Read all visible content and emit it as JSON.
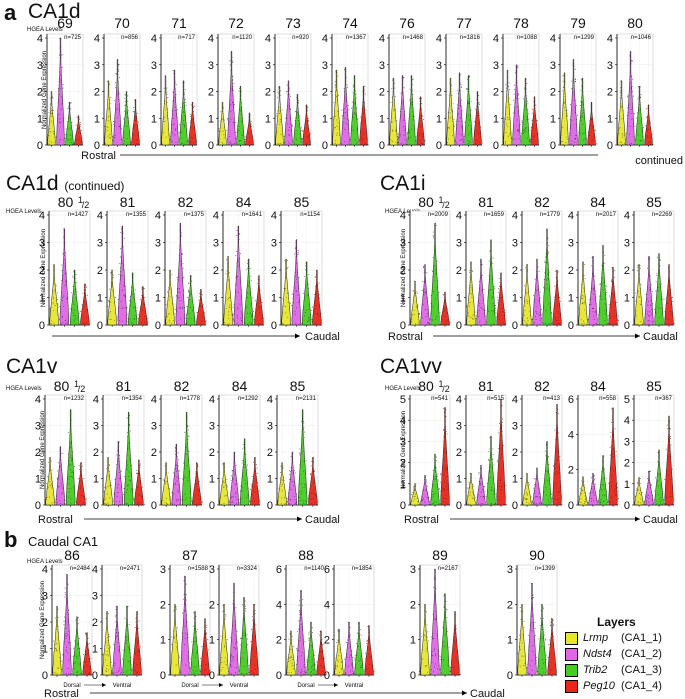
{
  "panel_labels": {
    "a": "a",
    "b": "b"
  },
  "titles": {
    "ca1d": "CA1d",
    "ca1d_cont": "CA1d",
    "ca1d_cont_sub": "(continued)",
    "ca1i": "CA1i",
    "ca1v": "CA1v",
    "ca1vv": "CA1vv",
    "caudal": "Caudal CA1"
  },
  "hgea_label": "HGEA Levels",
  "ylabel": "Normalized Gene Expression",
  "axis_labels": {
    "rostral": "Rostral",
    "caudal": "Caudal",
    "continued": "continued",
    "dorsal": "Dorsal",
    "ventral": "Ventral"
  },
  "legend": {
    "title": "Layers",
    "items": [
      {
        "gene": "Lrmp",
        "layer": "(CA1_1)",
        "color": "#e6e62e"
      },
      {
        "gene": "Ndst4",
        "layer": "(CA1_2)",
        "color": "#e066e6"
      },
      {
        "gene": "Trib2",
        "layer": "(CA1_3)",
        "color": "#44cc22"
      },
      {
        "gene": "Peg10",
        "layer": "(CA1_4)",
        "color": "#e8261a"
      }
    ]
  },
  "colors": {
    "Lrmp": "#e6e62e",
    "Ndst4": "#e066e6",
    "Trib2": "#44cc22",
    "Peg10": "#e8261a",
    "dots_dark": "#333333"
  },
  "chart_data": [
    {
      "type": "violin",
      "section": "CA1d",
      "ylim": [
        0,
        4
      ],
      "yticks": [
        0,
        1,
        2,
        3,
        4
      ],
      "categories": [
        "Lrmp",
        "Ndst4",
        "Trib2",
        "Peg10"
      ],
      "plots": [
        {
          "level": "69",
          "n": "n=725",
          "heights": [
            2.0,
            4.0,
            1.6,
            1.1
          ]
        },
        {
          "level": "70",
          "n": "n=856",
          "heights": [
            2.4,
            3.2,
            2.0,
            1.7
          ]
        },
        {
          "level": "71",
          "n": "n=717",
          "heights": [
            2.6,
            2.8,
            2.4,
            1.6
          ]
        },
        {
          "level": "72",
          "n": "n=1120",
          "heights": [
            1.6,
            3.5,
            2.2,
            1.2
          ]
        },
        {
          "level": "73",
          "n": "n=920",
          "heights": [
            2.2,
            2.4,
            1.9,
            1.5
          ]
        },
        {
          "level": "74",
          "n": "n=1367",
          "heights": [
            2.8,
            2.9,
            2.6,
            2.2
          ]
        },
        {
          "level": "76",
          "n": "n=1468",
          "heights": [
            2.5,
            2.6,
            2.6,
            1.8
          ]
        },
        {
          "level": "77",
          "n": "n=1816",
          "heights": [
            2.5,
            2.7,
            2.6,
            2.0
          ]
        },
        {
          "level": "78",
          "n": "n=1088",
          "heights": [
            2.8,
            3.0,
            2.5,
            1.8
          ]
        },
        {
          "level": "79",
          "n": "n=1299",
          "heights": [
            2.7,
            3.2,
            2.5,
            1.6
          ]
        },
        {
          "level": "80",
          "n": "n=1046",
          "heights": [
            2.4,
            3.5,
            2.2,
            1.5
          ]
        }
      ]
    },
    {
      "type": "violin",
      "section": "CA1d (continued)",
      "ylim": [
        0,
        4
      ],
      "yticks": [
        0,
        1,
        2,
        3,
        4
      ],
      "categories": [
        "Lrmp",
        "Ndst4",
        "Trib2",
        "Peg10"
      ],
      "plots": [
        {
          "level": "80",
          "n": "n=1427",
          "heights": [
            2.2,
            3.5,
            2.0,
            1.5
          ]
        },
        {
          "level": "81",
          "n": "n=1355",
          "heights": [
            2.0,
            3.6,
            1.9,
            1.4
          ]
        },
        {
          "level": "82",
          "n": "n=1375",
          "heights": [
            2.0,
            3.7,
            1.8,
            1.3
          ]
        },
        {
          "level": "84",
          "n": "n=1641",
          "heights": [
            2.5,
            3.6,
            2.4,
            1.8
          ]
        },
        {
          "level": "85",
          "n": "n=1154",
          "heights": [
            2.4,
            3.1,
            2.3,
            2.0
          ]
        }
      ]
    },
    {
      "type": "violin",
      "section": "CA1i",
      "ylim": [
        0,
        4
      ],
      "yticks": [
        0,
        1,
        2,
        3,
        4
      ],
      "categories": [
        "Lrmp",
        "Ndst4",
        "Trib2",
        "Peg10"
      ],
      "plots": [
        {
          "level": "80",
          "n": "n=2009",
          "heights": [
            1.6,
            2.2,
            3.7,
            1.2
          ]
        },
        {
          "level": "81",
          "n": "n=1659",
          "heights": [
            2.3,
            2.4,
            3.1,
            1.9
          ]
        },
        {
          "level": "82",
          "n": "n=1779",
          "heights": [
            2.2,
            2.4,
            3.5,
            2.0
          ]
        },
        {
          "level": "84",
          "n": "n=2017",
          "heights": [
            2.3,
            2.5,
            2.9,
            2.1
          ]
        },
        {
          "level": "85",
          "n": "n=2269",
          "heights": [
            2.2,
            2.5,
            2.6,
            2.2
          ]
        }
      ]
    },
    {
      "type": "violin",
      "section": "CA1v",
      "ylim": [
        0,
        4
      ],
      "yticks": [
        0,
        1,
        2,
        3,
        4
      ],
      "categories": [
        "Lrmp",
        "Ndst4",
        "Trib2",
        "Peg10"
      ],
      "plots": [
        {
          "level": "80",
          "n": "n=1232",
          "heights": [
            1.8,
            2.2,
            3.6,
            1.6
          ]
        },
        {
          "level": "81",
          "n": "n=1354",
          "heights": [
            1.8,
            2.4,
            3.5,
            1.7
          ]
        },
        {
          "level": "82",
          "n": "n=1778",
          "heights": [
            1.6,
            2.3,
            3.5,
            1.6
          ]
        },
        {
          "level": "84",
          "n": "n=1292",
          "heights": [
            1.6,
            2.0,
            2.5,
            1.8
          ]
        },
        {
          "level": "85",
          "n": "n=2131",
          "heights": [
            1.6,
            2.0,
            3.6,
            1.8
          ]
        }
      ]
    },
    {
      "type": "violin",
      "section": "CA1vv",
      "categories": [
        "Lrmp",
        "Ndst4",
        "Trib2",
        "Peg10"
      ],
      "plots": [
        {
          "level": "80",
          "n": "n=541",
          "ylim": [
            0,
            5
          ],
          "yticks": [
            0,
            1,
            2,
            3,
            4,
            5
          ],
          "heights": [
            1.0,
            1.4,
            2.4,
            4.6
          ]
        },
        {
          "level": "81",
          "n": "n=515",
          "ylim": [
            0,
            4
          ],
          "yticks": [
            0,
            1,
            2,
            3,
            4
          ],
          "heights": [
            1.2,
            1.5,
            2.6,
            4.0
          ]
        },
        {
          "level": "82",
          "n": "n=413",
          "ylim": [
            0,
            4
          ],
          "yticks": [
            0,
            1,
            2,
            3,
            4
          ],
          "heights": [
            1.2,
            1.4,
            2.4,
            3.8
          ]
        },
        {
          "level": "84",
          "n": "n=558",
          "ylim": [
            0,
            6
          ],
          "yticks": [
            0,
            2,
            4,
            6
          ],
          "heights": [
            1.6,
            1.8,
            2.8,
            5.5
          ]
        },
        {
          "level": "85",
          "n": "n=367",
          "ylim": [
            0,
            5
          ],
          "yticks": [
            0,
            1,
            2,
            3,
            4,
            5
          ],
          "heights": [
            1.3,
            1.6,
            2.6,
            4.2
          ]
        }
      ]
    },
    {
      "type": "violin",
      "section": "Caudal CA1",
      "categories": [
        "Lrmp",
        "Ndst4",
        "Trib2",
        "Peg10"
      ],
      "plots": [
        {
          "level": "86",
          "n": "n=2484",
          "sub": "Dorsal",
          "ylim": [
            0,
            4
          ],
          "yticks": [
            0,
            1,
            2,
            3,
            4
          ],
          "heights": [
            2.6,
            3.8,
            2.2,
            1.6
          ]
        },
        {
          "level": "",
          "n": "n=2471",
          "sub": "Ventral",
          "ylim": [
            0,
            4
          ],
          "yticks": [
            0,
            1,
            2,
            3,
            4
          ],
          "heights": [
            2.4,
            2.6,
            2.6,
            2.4
          ]
        },
        {
          "level": "87",
          "n": "n=1588",
          "sub": "Dorsal",
          "ylim": [
            0,
            3
          ],
          "yticks": [
            0,
            1,
            2,
            3
          ],
          "heights": [
            2.0,
            2.8,
            1.8,
            1.6
          ]
        },
        {
          "level": "",
          "n": "n=3324",
          "sub": "Ventral",
          "ylim": [
            0,
            3
          ],
          "yticks": [
            0,
            1,
            2,
            3
          ],
          "heights": [
            2.0,
            2.6,
            2.2,
            2.0
          ]
        },
        {
          "level": "88",
          "n": "n=1140",
          "sub": "Dorsal",
          "ylim": [
            0,
            6
          ],
          "yticks": [
            0,
            2,
            4,
            6
          ],
          "heights": [
            2.5,
            4.8,
            3.0,
            2.5
          ]
        },
        {
          "level": "",
          "n": "n=1854",
          "sub": "Ventral",
          "ylim": [
            0,
            6
          ],
          "yticks": [
            0,
            2,
            4,
            6
          ],
          "heights": [
            2.6,
            3.0,
            3.0,
            2.8
          ]
        },
        {
          "level": "89",
          "n": "n=2167",
          "sub": "",
          "ylim": [
            0,
            3
          ],
          "yticks": [
            0,
            1,
            2,
            3
          ],
          "heights": [
            2.0,
            3.0,
            2.3,
            1.8
          ]
        },
        {
          "level": "90",
          "n": "n=1399",
          "sub": "",
          "ylim": [
            0,
            3
          ],
          "yticks": [
            0,
            1,
            2,
            3
          ],
          "heights": [
            2.0,
            2.6,
            2.0,
            1.6
          ]
        }
      ]
    }
  ]
}
